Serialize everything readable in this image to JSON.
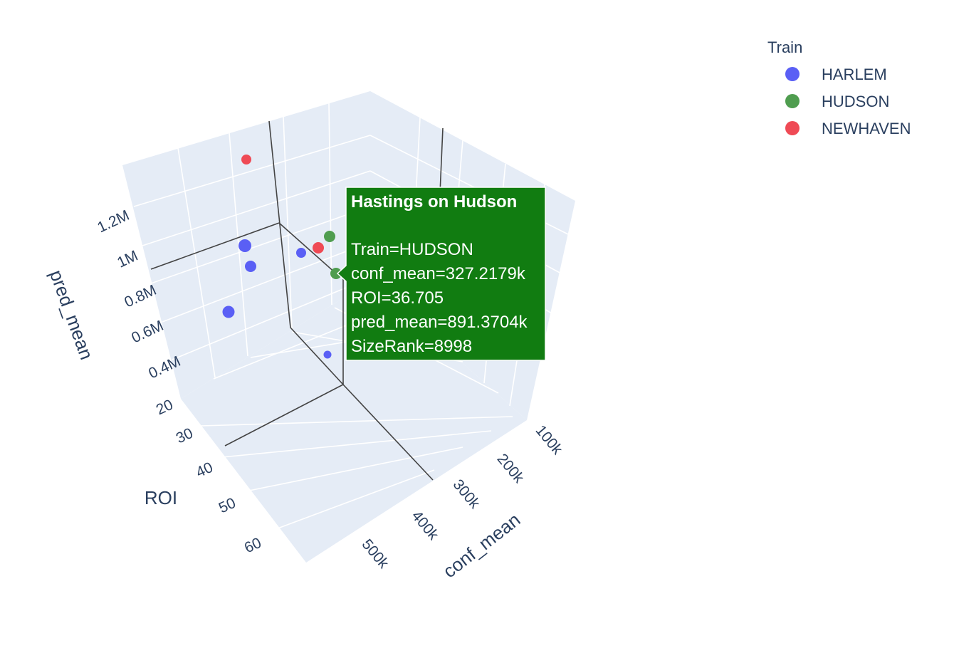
{
  "chart_data": {
    "type": "scatter",
    "legend": {
      "title": "Train",
      "placement": "top-right",
      "entries": [
        {
          "name": "HARLEM",
          "color": "#636efa"
        },
        {
          "name": "HUDSON",
          "color": "#00cc96"
        },
        {
          "name": "NEWHAVEN",
          "color": "#ef553b"
        }
      ]
    },
    "axes": {
      "x": {
        "title": "conf_mean",
        "ticks": [
          "100k",
          "200k",
          "300k",
          "400k",
          "500k"
        ]
      },
      "y": {
        "title": "ROI",
        "ticks": [
          "20",
          "30",
          "40",
          "50",
          "60"
        ]
      },
      "z": {
        "title": "pred_mean",
        "ticks": [
          "0.4M",
          "0.6M",
          "0.8M",
          "1M",
          "1.2M"
        ]
      }
    },
    "series": [
      {
        "name": "HARLEM",
        "color": "#5a5ff5"
      },
      {
        "name": "HUDSON",
        "color": "#4f9d4f"
      },
      {
        "name": "NEWHAVEN",
        "color": "#ef4a55"
      }
    ],
    "tooltip": {
      "title": "Hastings on Hudson",
      "lines": [
        "Train=HUDSON",
        "conf_mean=327.2179k",
        "ROI=36.705",
        "pred_mean=891.3704k",
        "SizeRank=8998"
      ],
      "bg_color": "#117c11"
    }
  }
}
